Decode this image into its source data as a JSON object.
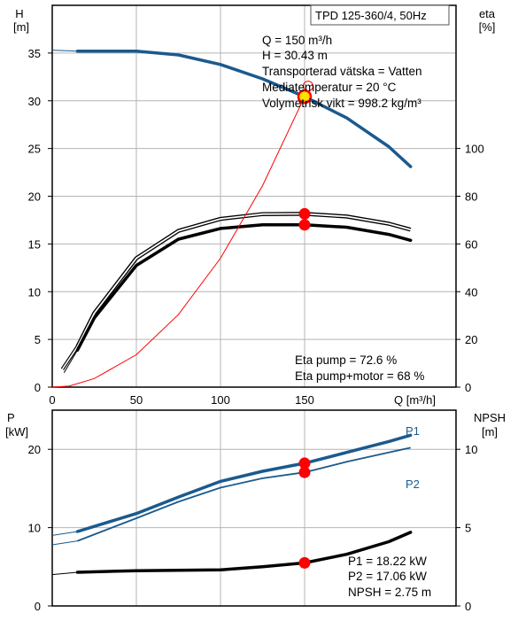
{
  "colors": {
    "blue": "#1a5a8e",
    "black": "#000000",
    "red": "#ff0000",
    "grid": "#b4b4b4",
    "yellow": "#ffe000"
  },
  "top": {
    "left_axis_title": [
      "H",
      "[m]"
    ],
    "right_axis_title": [
      "eta",
      "[%]"
    ],
    "model_label": "TPD 125-360/4, 50Hz",
    "info_lines": [
      "Q = 150 m³/h",
      "H = 30.43 m",
      "Transporterad vätska = Vatten",
      "Mediatemperatur = 20 °C",
      "Volymetrisk vikt = 998.2 kg/m³"
    ],
    "eta_lines": [
      "Eta pump = 72.6 %",
      "Eta pump+motor = 68 %"
    ],
    "x_axis_label": "Q [m³/h]"
  },
  "bottom": {
    "left_axis_title": [
      "P",
      "[kW]"
    ],
    "right_axis_title": [
      "NPSH",
      "[m]"
    ],
    "series_labels": {
      "p1": "P1",
      "p2": "P2"
    },
    "info_lines": [
      "P1 = 18.22 kW",
      "P2 = 17.06 kW",
      "NPSH = 2.75 m"
    ]
  },
  "chart_data": [
    {
      "type": "line",
      "xlim": [
        0,
        240
      ],
      "x_ticks": [
        0,
        50,
        100,
        150
      ],
      "y_left": {
        "lim": [
          0,
          40
        ],
        "ticks": [
          0,
          5,
          10,
          15,
          20,
          25,
          30,
          35
        ]
      },
      "y_right": {
        "lim": [
          0,
          160
        ],
        "ticks": [
          0,
          20,
          40,
          60,
          80,
          100
        ]
      },
      "grid": true,
      "series": [
        {
          "key": "H",
          "axis": "left",
          "style": "blue-thick",
          "x": [
            15,
            30,
            50,
            75,
            100,
            125,
            150,
            175,
            200,
            213
          ],
          "y": [
            35.2,
            35.2,
            35.2,
            34.8,
            33.8,
            32.3,
            30.43,
            28.2,
            25.2,
            23.1
          ],
          "ext": [
            [
              0,
              35.3
            ],
            [
              15,
              35.2
            ]
          ]
        },
        {
          "key": "eta_pump",
          "axis": "right",
          "style": "double",
          "x": [
            15,
            25,
            50,
            75,
            100,
            125,
            150,
            175,
            200,
            213
          ],
          "y": [
            17,
            31,
            54,
            65.5,
            70.5,
            72.5,
            72.6,
            71.5,
            68.5,
            66
          ],
          "ext": [
            [
              6,
              7.5
            ],
            [
              15,
              17
            ]
          ]
        },
        {
          "key": "eta_total",
          "axis": "right",
          "style": "black-thick",
          "x": [
            15,
            25,
            50,
            75,
            100,
            125,
            150,
            175,
            200,
            213
          ],
          "y": [
            15.5,
            29,
            51,
            62,
            66.5,
            68,
            68,
            67,
            64,
            61.5
          ],
          "ext": [
            [
              7,
              6
            ],
            [
              15,
              15.5
            ]
          ]
        },
        {
          "key": "system_curve",
          "axis": "left",
          "style": "red-thin",
          "x": [
            0,
            10,
            25,
            50,
            75,
            100,
            125,
            150
          ],
          "y": [
            0,
            0.1,
            0.9,
            3.4,
            7.6,
            13.5,
            21.1,
            30.43
          ]
        }
      ],
      "operating_points": [
        {
          "axis": "left",
          "x": 150,
          "y": 30.43,
          "style": "yellow"
        },
        {
          "axis": "right",
          "x": 150,
          "y": 72.6,
          "style": "red"
        },
        {
          "axis": "right",
          "x": 150,
          "y": 68,
          "style": "red"
        }
      ]
    },
    {
      "type": "line",
      "xlim": [
        0,
        240
      ],
      "x_ticks": [
        0,
        50,
        100,
        150
      ],
      "y_left": {
        "lim": [
          0,
          25
        ],
        "ticks": [
          0,
          10,
          20
        ]
      },
      "y_right": {
        "lim": [
          0,
          12.5
        ],
        "ticks": [
          0,
          5,
          10
        ]
      },
      "grid": true,
      "series": [
        {
          "key": "P1",
          "axis": "left",
          "style": "blue-thick",
          "x": [
            15,
            50,
            75,
            100,
            125,
            150,
            175,
            200,
            213
          ],
          "y": [
            9.5,
            11.8,
            13.9,
            15.9,
            17.2,
            18.22,
            19.6,
            21,
            21.8
          ],
          "ext": [
            [
              0,
              9.0
            ],
            [
              15,
              9.5
            ]
          ]
        },
        {
          "key": "P2",
          "axis": "left",
          "style": "blue-thin",
          "x": [
            15,
            50,
            75,
            100,
            125,
            150,
            175,
            200,
            213
          ],
          "y": [
            8.3,
            11.2,
            13.3,
            15.1,
            16.3,
            17.06,
            18.4,
            19.6,
            20.2
          ],
          "ext": [
            [
              0,
              7.8
            ],
            [
              15,
              8.3
            ]
          ]
        },
        {
          "key": "NPSH",
          "axis": "right",
          "style": "black-thick",
          "x": [
            15,
            50,
            100,
            125,
            150,
            175,
            200,
            213
          ],
          "y": [
            2.15,
            2.25,
            2.3,
            2.5,
            2.75,
            3.3,
            4.1,
            4.7
          ],
          "ext": [
            [
              0,
              2.0
            ],
            [
              15,
              2.15
            ]
          ]
        }
      ],
      "operating_points": [
        {
          "axis": "left",
          "x": 150,
          "y": 18.22,
          "style": "red"
        },
        {
          "axis": "left",
          "x": 150,
          "y": 17.06,
          "style": "red"
        },
        {
          "axis": "right",
          "x": 150,
          "y": 2.75,
          "style": "red"
        }
      ]
    }
  ]
}
